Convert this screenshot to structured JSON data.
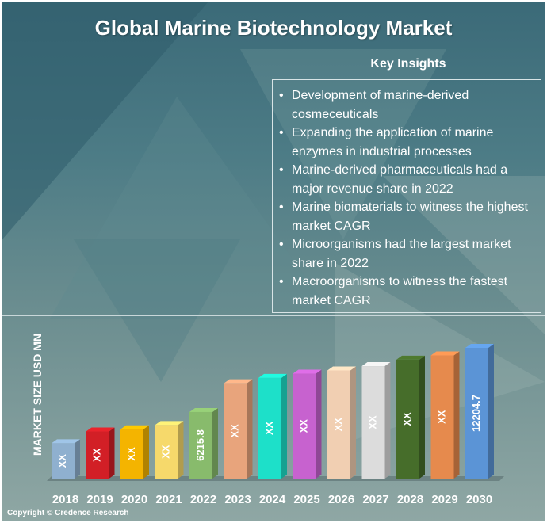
{
  "title": "Global Marine Biotechnology Market",
  "insights": {
    "heading": "Key Insights",
    "items": [
      "Development of marine-derived cosmeceuticals",
      "Expanding the application of marine enzymes in industrial processes",
      "Marine-derived pharmaceuticals had a major revenue share in 2022",
      "Marine biomaterials to witness the highest market CAGR",
      "Microorganisms had the largest market share in 2022",
      "Macroorganisms to witness the fastest market CAGR"
    ]
  },
  "copyright": "Copyright © Credence Research",
  "chart_data": {
    "type": "bar",
    "title": "Global Marine Biotechnology Market",
    "xlabel": "",
    "ylabel": "MARKET SIZE USD MN",
    "categories": [
      "2018",
      "2019",
      "2020",
      "2021",
      "2022",
      "2023",
      "2024",
      "2025",
      "2026",
      "2027",
      "2028",
      "2029",
      "2030"
    ],
    "values": [
      3300,
      4400,
      4600,
      5000,
      6215.8,
      8900,
      9400,
      9800,
      10100,
      10500,
      11100,
      11500,
      12204.7
    ],
    "data_labels": [
      "XX",
      "XX",
      "XX",
      "XX",
      "6215.8",
      "XX",
      "XX",
      "XX",
      "XX",
      "XX",
      "XX",
      "XX",
      "12204.7"
    ],
    "colors": [
      "#8fb0cf",
      "#d21f26",
      "#f4b400",
      "#f6d96b",
      "#88bb6c",
      "#e8a47c",
      "#1de0c9",
      "#c762cf",
      "#f1cfb2",
      "#dcdcdc",
      "#466d2a",
      "#e68a4d",
      "#5b94d6"
    ],
    "ylim": [
      0,
      12204.7
    ],
    "grid": false,
    "legend": "none"
  }
}
